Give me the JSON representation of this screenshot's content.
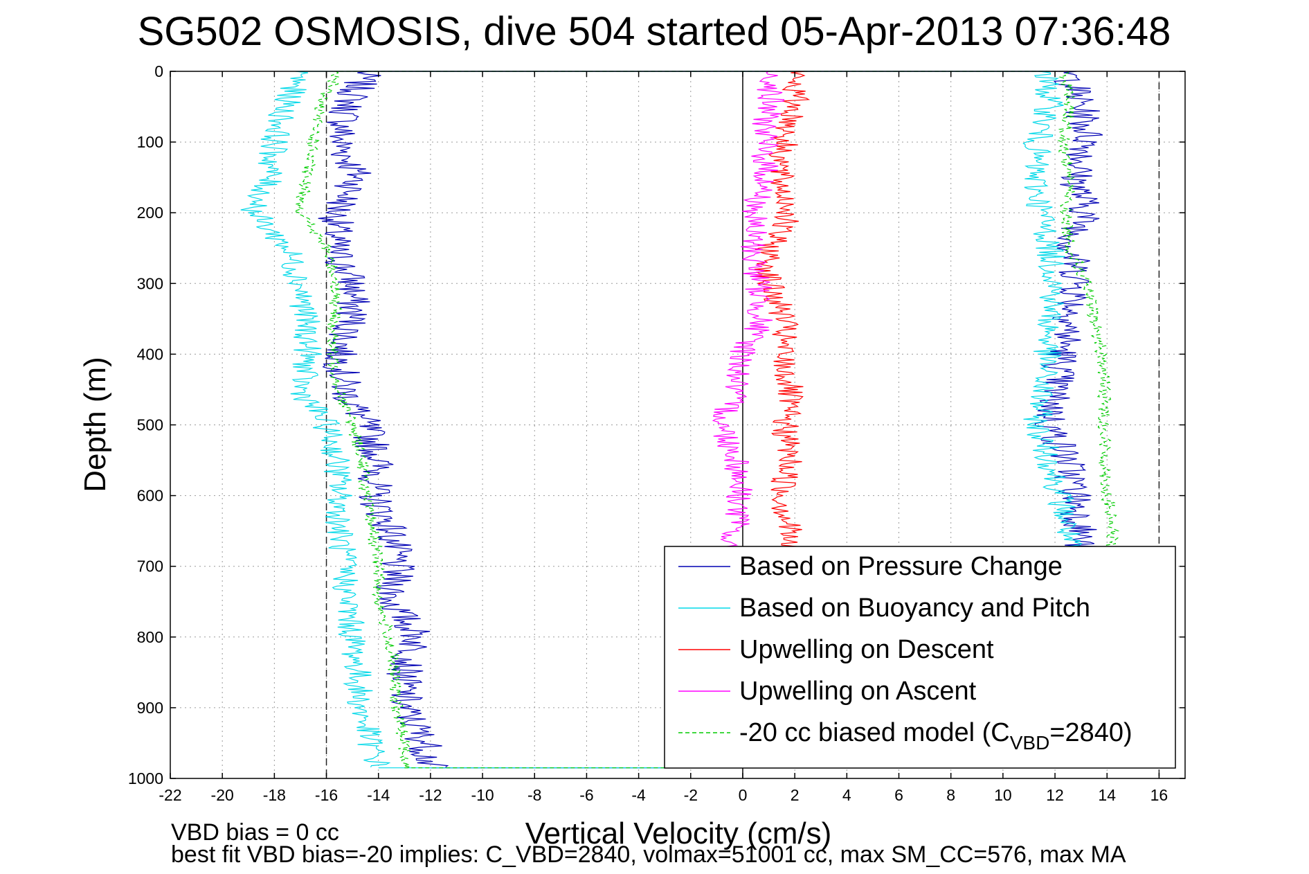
{
  "chart_data": {
    "type": "line",
    "title": "SG502 OSMOSIS, dive 504 started 05-Apr-2013 07:36:48",
    "xlabel": "Vertical Velocity (cm/s)",
    "ylabel": "Depth (m)",
    "xlim": [
      -22,
      17
    ],
    "ylim": [
      1000,
      0
    ],
    "y_reversed": true,
    "grid": true,
    "legend_position": "bottom-right",
    "xticks": [
      -22,
      -20,
      -18,
      -16,
      -14,
      -12,
      -10,
      -8,
      -6,
      -4,
      -2,
      0,
      2,
      4,
      6,
      8,
      10,
      12,
      14,
      16
    ],
    "yticks": [
      0,
      100,
      200,
      300,
      400,
      500,
      600,
      700,
      800,
      900,
      1000
    ],
    "reference_lines": {
      "dashed_x": [
        -16,
        16
      ],
      "solid_x": [
        0
      ]
    },
    "series": [
      {
        "name": "Based on Pressure Change",
        "color": "#0000b4",
        "style": "solid",
        "depth": [
          0,
          50,
          100,
          150,
          200,
          250,
          300,
          350,
          400,
          450,
          500,
          550,
          600,
          650,
          700,
          750,
          800,
          850,
          900,
          950,
          985
        ],
        "descent_velocity": [
          -14.5,
          -15.2,
          -15.5,
          -14.8,
          -15.6,
          -15.7,
          -15.0,
          -15.0,
          -15.5,
          -15.3,
          -14.5,
          -14.0,
          -14.2,
          -13.5,
          -13.3,
          -13.5,
          -12.5,
          -13.0,
          -13.0,
          -12.2,
          -12.0
        ],
        "ascent_velocity": [
          12.5,
          13.0,
          13.3,
          12.8,
          13.2,
          12.6,
          12.9,
          12.6,
          12.3,
          12.0,
          11.8,
          12.5,
          12.8,
          13.0,
          12.9,
          13.0,
          13.0,
          12.9,
          13.0,
          13.0,
          13.0
        ]
      },
      {
        "name": "Based on Buoyancy and Pitch",
        "color": "#00d8e8",
        "style": "solid",
        "depth": [
          0,
          50,
          100,
          150,
          200,
          250,
          300,
          350,
          400,
          450,
          500,
          550,
          600,
          650,
          700,
          750,
          800,
          850,
          900,
          950,
          985
        ],
        "descent_velocity": [
          -17.0,
          -17.6,
          -18.0,
          -18.2,
          -18.8,
          -17.5,
          -17.0,
          -16.8,
          -16.7,
          -17.0,
          -16.0,
          -15.6,
          -15.5,
          -15.5,
          -15.3,
          -15.2,
          -15.0,
          -14.8,
          -14.7,
          -14.3,
          -14.0
        ],
        "ascent_velocity": [
          11.6,
          11.8,
          11.3,
          11.2,
          11.5,
          11.8,
          12.0,
          11.8,
          11.7,
          11.5,
          11.3,
          11.8,
          12.2,
          12.5,
          12.5,
          12.6,
          12.6,
          12.6,
          12.6,
          12.6,
          12.6
        ]
      },
      {
        "name": "Upwelling on Descent",
        "color": "#ff0000",
        "style": "solid",
        "depth": [
          0,
          50,
          100,
          150,
          200,
          250,
          300,
          350,
          400,
          450,
          500,
          550,
          600,
          650,
          700
        ],
        "velocity": [
          2.0,
          2.0,
          1.6,
          1.4,
          1.8,
          1.0,
          1.0,
          1.6,
          1.5,
          1.8,
          1.6,
          1.8,
          1.5,
          1.8,
          1.5
        ]
      },
      {
        "name": "Upwelling on Ascent",
        "color": "#ff00ff",
        "style": "solid",
        "depth": [
          0,
          50,
          100,
          150,
          200,
          250,
          300,
          350,
          400,
          450,
          500,
          550,
          600,
          650,
          680
        ],
        "velocity": [
          1.2,
          1.0,
          0.8,
          0.9,
          0.4,
          0.4,
          0.6,
          0.7,
          0.0,
          -0.3,
          -0.8,
          -0.2,
          -0.1,
          -0.3,
          -1.0
        ]
      },
      {
        "name": "-20 cc biased model (C_VBD=2840)",
        "color": "#00cc00",
        "style": "dashed",
        "depth": [
          0,
          50,
          100,
          150,
          200,
          250,
          300,
          350,
          400,
          450,
          500,
          550,
          600,
          650,
          700,
          750,
          800,
          850,
          900,
          950,
          985
        ],
        "descent_velocity": [
          -15.5,
          -16.3,
          -16.5,
          -16.8,
          -17.0,
          -16.0,
          -15.6,
          -15.7,
          -15.8,
          -15.5,
          -15.0,
          -14.6,
          -14.5,
          -14.2,
          -14.0,
          -14.0,
          -13.6,
          -13.4,
          -13.3,
          -13.0,
          -13.0
        ],
        "ascent_velocity": [
          12.4,
          12.6,
          12.3,
          12.6,
          12.4,
          12.6,
          13.2,
          13.5,
          13.8,
          13.9,
          13.9,
          13.9,
          14.0,
          14.2,
          14.1,
          14.1,
          14.1,
          14.1,
          14.1,
          14.1,
          14.1
        ]
      }
    ],
    "legend": {
      "entries": [
        {
          "label": "Based on Pressure Change",
          "color": "#0000b4",
          "style": "solid"
        },
        {
          "label": "Based on Buoyancy and Pitch",
          "color": "#00d8e8",
          "style": "solid"
        },
        {
          "label": "Upwelling on Descent",
          "color": "#ff0000",
          "style": "solid"
        },
        {
          "label": "Upwelling on Ascent",
          "color": "#ff00ff",
          "style": "solid"
        },
        {
          "label": "-20 cc biased model (C",
          "sub": "VBD",
          "suffix": "=2840)",
          "color": "#00cc00",
          "style": "dashed"
        }
      ]
    },
    "annotations": [
      "VBD bias = 0 cc",
      "best fit VBD bias=-20 implies: C_VBD=2840, volmax=51001 cc, max SM_CC=576, max MA"
    ]
  }
}
